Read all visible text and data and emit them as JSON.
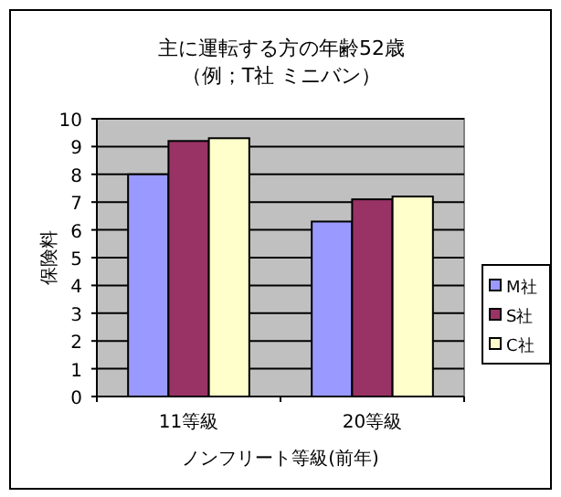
{
  "chart_data": {
    "type": "bar",
    "title": "主に運転する方の年齢52歳",
    "subtitle": "（例；T社 ミニバン）",
    "xlabel": "ノンフリート等級(前年)",
    "ylabel": "保険料",
    "categories": [
      "11等級",
      "20等級"
    ],
    "series": [
      {
        "name": "M社",
        "color": "#9999ff",
        "values": [
          8.0,
          6.3
        ]
      },
      {
        "name": "S社",
        "color": "#993366",
        "values": [
          9.2,
          7.1
        ]
      },
      {
        "name": "C社",
        "color": "#ffffcc",
        "values": [
          9.3,
          7.2
        ]
      }
    ],
    "ylim": [
      0,
      10
    ],
    "yticks": [
      0,
      1,
      2,
      3,
      4,
      5,
      6,
      7,
      8,
      9,
      10
    ],
    "grid": "y",
    "legend": "right"
  }
}
